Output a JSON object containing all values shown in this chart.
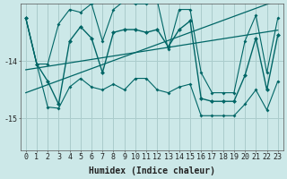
{
  "xlabel": "Humidex (Indice chaleur)",
  "bg_color": "#cce8e8",
  "grid_color": "#aacccc",
  "line_color": "#006666",
  "x": [
    0,
    1,
    2,
    3,
    4,
    5,
    6,
    7,
    8,
    9,
    10,
    11,
    12,
    13,
    14,
    15,
    16,
    17,
    18,
    19,
    20,
    21,
    22,
    23
  ],
  "y_main": [
    -13.25,
    -14.05,
    -14.35,
    -14.75,
    -13.65,
    -13.4,
    -13.6,
    -14.2,
    -13.5,
    -13.45,
    -13.45,
    -13.5,
    -13.45,
    -13.75,
    -13.45,
    -13.3,
    -14.65,
    -14.7,
    -14.7,
    -14.7,
    -14.25,
    -13.6,
    -14.5,
    -13.55
  ],
  "y_upper": [
    -13.25,
    -14.05,
    -14.05,
    -13.35,
    -13.1,
    -13.15,
    -13.0,
    -13.65,
    -13.1,
    -12.95,
    -13.0,
    -13.0,
    -12.95,
    -13.8,
    -13.1,
    -13.1,
    -14.2,
    -14.55,
    -14.55,
    -14.55,
    -13.65,
    -13.2,
    -14.2,
    -13.25
  ],
  "y_lower": [
    -13.25,
    -14.05,
    -14.8,
    -14.82,
    -14.45,
    -14.3,
    -14.45,
    -14.5,
    -14.4,
    -14.5,
    -14.3,
    -14.3,
    -14.5,
    -14.55,
    -14.45,
    -14.4,
    -14.95,
    -14.95,
    -14.95,
    -14.95,
    -14.75,
    -14.5,
    -14.85,
    -14.35
  ],
  "y_trend1": [
    -14.15,
    -14.12,
    -14.09,
    -14.06,
    -14.03,
    -14.0,
    -13.97,
    -13.94,
    -13.91,
    -13.88,
    -13.85,
    -13.82,
    -13.79,
    -13.76,
    -13.73,
    -13.7,
    -13.67,
    -13.64,
    -13.61,
    -13.58,
    -13.55,
    -13.52,
    -13.49,
    -13.46
  ],
  "y_trend2": [
    -14.55,
    -14.48,
    -14.41,
    -14.34,
    -14.27,
    -14.2,
    -14.13,
    -14.06,
    -13.99,
    -13.92,
    -13.85,
    -13.78,
    -13.71,
    -13.64,
    -13.57,
    -13.5,
    -13.43,
    -13.36,
    -13.29,
    -13.22,
    -13.15,
    -13.08,
    -13.01,
    -12.94
  ],
  "ylim": [
    -15.55,
    -13.0
  ],
  "yticks": [
    -15.0,
    -14.0
  ],
  "xlim": [
    -0.5,
    23.5
  ],
  "label_fontsize": 7,
  "tick_fontsize": 6
}
